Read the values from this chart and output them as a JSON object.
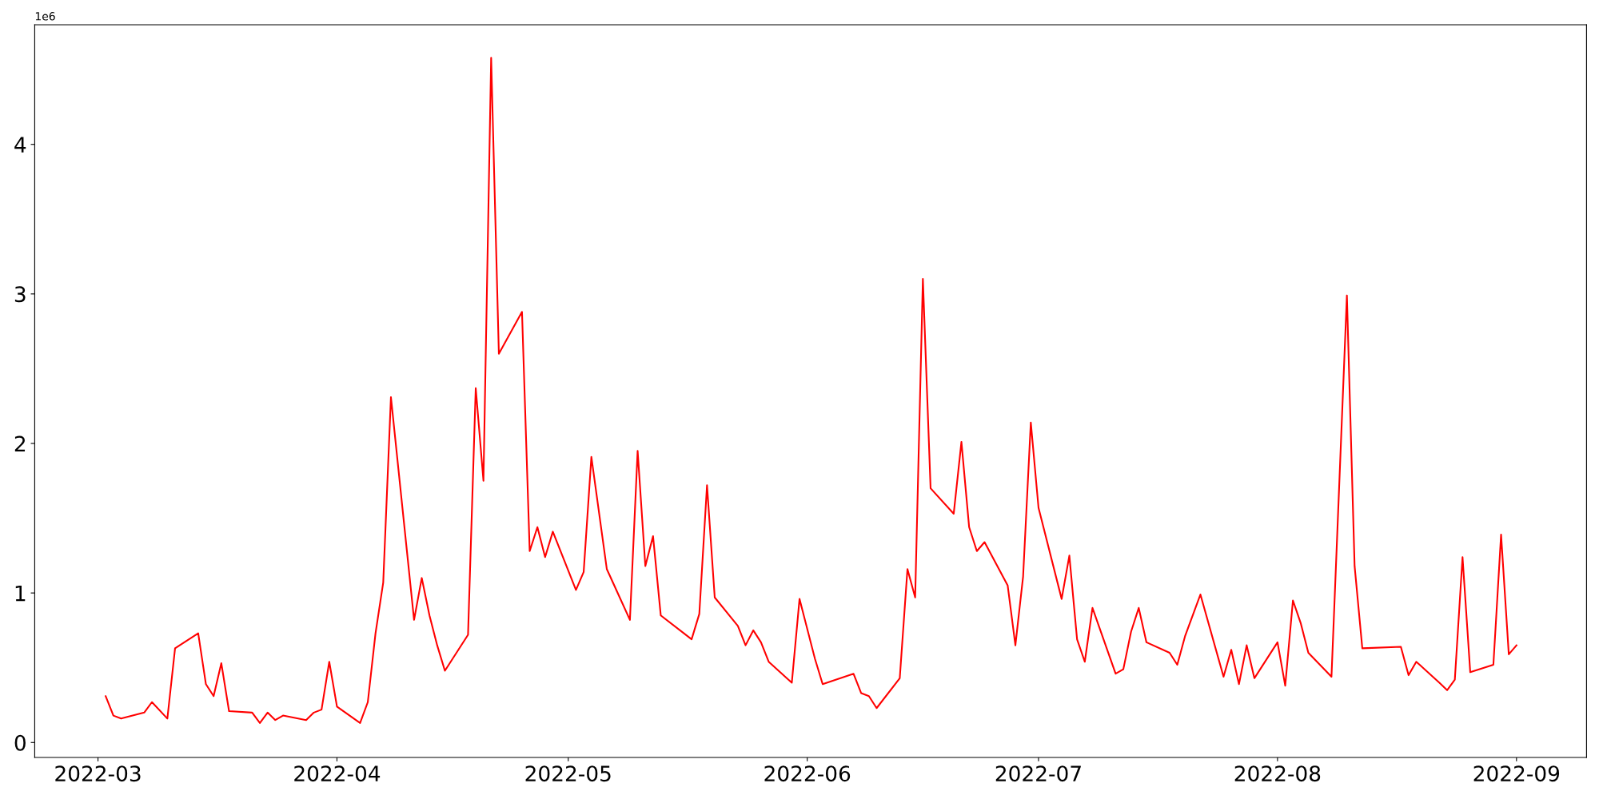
{
  "chart_data": {
    "type": "line",
    "x": [
      "2022-03-02",
      "2022-03-03",
      "2022-03-04",
      "2022-03-07",
      "2022-03-08",
      "2022-03-10",
      "2022-03-11",
      "2022-03-14",
      "2022-03-15",
      "2022-03-16",
      "2022-03-17",
      "2022-03-18",
      "2022-03-21",
      "2022-03-22",
      "2022-03-23",
      "2022-03-24",
      "2022-03-25",
      "2022-03-28",
      "2022-03-29",
      "2022-03-30",
      "2022-03-31",
      "2022-04-01",
      "2022-04-04",
      "2022-04-05",
      "2022-04-06",
      "2022-04-07",
      "2022-04-08",
      "2022-04-11",
      "2022-04-12",
      "2022-04-13",
      "2022-04-14",
      "2022-04-15",
      "2022-04-18",
      "2022-04-19",
      "2022-04-20",
      "2022-04-21",
      "2022-04-22",
      "2022-04-25",
      "2022-04-26",
      "2022-04-27",
      "2022-04-28",
      "2022-04-29",
      "2022-05-02",
      "2022-05-03",
      "2022-05-04",
      "2022-05-06",
      "2022-05-09",
      "2022-05-10",
      "2022-05-11",
      "2022-05-12",
      "2022-05-13",
      "2022-05-16",
      "2022-05-17",
      "2022-05-18",
      "2022-05-19",
      "2022-05-20",
      "2022-05-23",
      "2022-05-24",
      "2022-05-25",
      "2022-05-26",
      "2022-05-27",
      "2022-05-30",
      "2022-05-31",
      "2022-06-02",
      "2022-06-03",
      "2022-06-07",
      "2022-06-08",
      "2022-06-09",
      "2022-06-10",
      "2022-06-13",
      "2022-06-14",
      "2022-06-15",
      "2022-06-16",
      "2022-06-17",
      "2022-06-20",
      "2022-06-21",
      "2022-06-22",
      "2022-06-23",
      "2022-06-24",
      "2022-06-27",
      "2022-06-28",
      "2022-06-29",
      "2022-06-30",
      "2022-07-01",
      "2022-07-04",
      "2022-07-05",
      "2022-07-06",
      "2022-07-07",
      "2022-07-08",
      "2022-07-11",
      "2022-07-12",
      "2022-07-13",
      "2022-07-14",
      "2022-07-15",
      "2022-07-18",
      "2022-07-19",
      "2022-07-20",
      "2022-07-22",
      "2022-07-25",
      "2022-07-26",
      "2022-07-27",
      "2022-07-28",
      "2022-07-29",
      "2022-08-01",
      "2022-08-02",
      "2022-08-03",
      "2022-08-04",
      "2022-08-05",
      "2022-08-08",
      "2022-08-10",
      "2022-08-11",
      "2022-08-12",
      "2022-08-17",
      "2022-08-18",
      "2022-08-19",
      "2022-08-22",
      "2022-08-23",
      "2022-08-24",
      "2022-08-25",
      "2022-08-26",
      "2022-08-29",
      "2022-08-30",
      "2022-08-31",
      "2022-09-01"
    ],
    "series": [
      {
        "color": "#ff0000",
        "values": [
          0.31,
          0.18,
          0.16,
          0.2,
          0.27,
          0.16,
          0.63,
          0.73,
          0.39,
          0.31,
          0.53,
          0.21,
          0.2,
          0.13,
          0.2,
          0.15,
          0.18,
          0.15,
          0.2,
          0.22,
          0.54,
          0.24,
          0.13,
          0.27,
          0.73,
          1.07,
          2.31,
          0.82,
          1.1,
          0.85,
          0.65,
          0.48,
          0.72,
          2.37,
          1.75,
          4.58,
          2.6,
          2.88,
          1.28,
          1.44,
          1.24,
          1.41,
          1.02,
          1.14,
          1.91,
          1.16,
          0.82,
          1.95,
          1.18,
          1.38,
          0.85,
          0.73,
          0.69,
          0.86,
          1.72,
          0.97,
          0.78,
          0.65,
          0.75,
          0.67,
          0.54,
          0.4,
          0.96,
          0.56,
          0.39,
          0.46,
          0.33,
          0.31,
          0.23,
          0.43,
          1.16,
          0.97,
          3.1,
          1.7,
          1.53,
          2.01,
          1.44,
          1.28,
          1.34,
          1.05,
          0.65,
          1.11,
          2.14,
          1.57,
          0.96,
          1.25,
          0.69,
          0.54,
          0.9,
          0.46,
          0.49,
          0.74,
          0.9,
          0.67,
          0.6,
          0.52,
          0.71,
          0.99,
          0.44,
          0.62,
          0.39,
          0.65,
          0.43,
          0.67,
          0.38,
          0.95,
          0.8,
          0.6,
          0.44,
          2.99,
          1.18,
          0.63,
          0.64,
          0.45,
          0.54,
          0.4,
          0.35,
          0.42,
          1.24,
          0.47,
          0.52,
          1.39,
          0.59,
          0.65
        ]
      }
    ],
    "xlim": [
      "2022-02-20T19:00",
      "2022-09-10T02:00"
    ],
    "xticks": [
      {
        "value": "2022-03-01",
        "label": "2022-03"
      },
      {
        "value": "2022-04-01",
        "label": "2022-04"
      },
      {
        "value": "2022-05-01",
        "label": "2022-05"
      },
      {
        "value": "2022-06-01",
        "label": "2022-06"
      },
      {
        "value": "2022-07-01",
        "label": "2022-07"
      },
      {
        "value": "2022-08-01",
        "label": "2022-08"
      },
      {
        "value": "2022-09-01",
        "label": "2022-09"
      }
    ],
    "ylim": [
      -0.1,
      4.8
    ],
    "yticks": [
      0,
      1,
      2,
      3,
      4
    ],
    "annotations": [
      "1e6"
    ],
    "grid": false,
    "legend": false
  }
}
